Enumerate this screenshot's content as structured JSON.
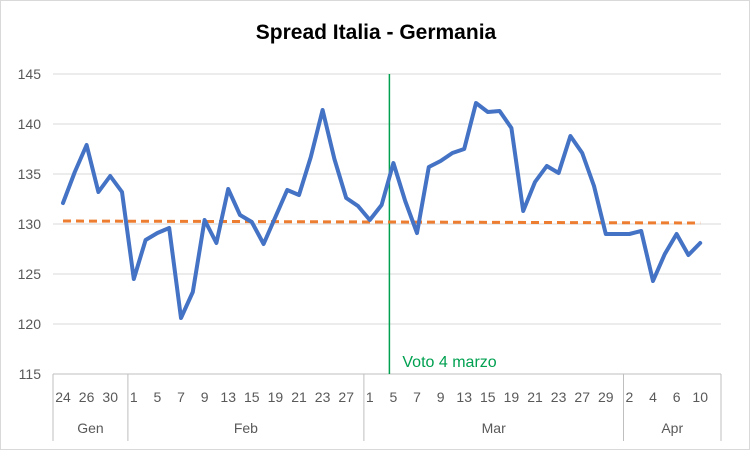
{
  "chart_data": {
    "type": "line",
    "title": "Spread Italia - Germania",
    "ylim": [
      115,
      145
    ],
    "yticks": [
      115,
      120,
      125,
      130,
      135,
      140,
      145
    ],
    "grid": "horizontal",
    "x_tick_labels": [
      "24",
      "26",
      "30",
      "1",
      "5",
      "7",
      "9",
      "13",
      "15",
      "19",
      "21",
      "23",
      "27",
      "1",
      "5",
      "7",
      "9",
      "13",
      "15",
      "19",
      "21",
      "23",
      "27",
      "29",
      "2",
      "4",
      "6",
      "10"
    ],
    "month_groups": [
      {
        "label": "Gen",
        "count": 6
      },
      {
        "label": "Feb",
        "count": 20
      },
      {
        "label": "Mar",
        "count": 22
      },
      {
        "label": "Apr",
        "count": 8
      }
    ],
    "series": [
      {
        "color": "#4472c4",
        "values": [
          132.1,
          135.2,
          137.9,
          133.2,
          134.8,
          133.2,
          124.5,
          128.4,
          129.1,
          129.6,
          120.6,
          123.2,
          130.4,
          128.1,
          133.5,
          130.9,
          130.2,
          128.0,
          130.7,
          133.4,
          132.9,
          136.7,
          141.4,
          136.5,
          132.6,
          131.8,
          130.4,
          131.9,
          136.1,
          132.3,
          129.1,
          135.7,
          136.3,
          137.1,
          137.5,
          142.1,
          141.2,
          141.3,
          139.6,
          131.3,
          134.2,
          135.8,
          135.1,
          138.8,
          137.1,
          133.8,
          129.0,
          129.0,
          129.0,
          129.3,
          124.3,
          127.0,
          129.0,
          126.9,
          128.1
        ]
      },
      {
        "color": "#ed7d31",
        "dashed": true,
        "values": [
          130.3,
          130.1
        ]
      }
    ],
    "annotations": [
      {
        "text": "Voto 4 marzo",
        "x_index": 28,
        "color": "#00a050"
      }
    ]
  }
}
